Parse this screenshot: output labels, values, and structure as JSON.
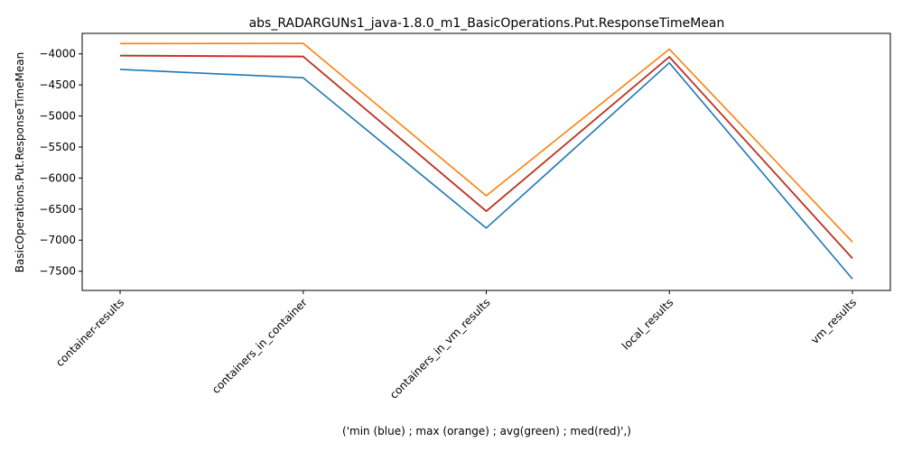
{
  "chart_data": {
    "type": "line",
    "title": "abs_RADARGUNs1_java-1.8.0_m1_BasicOperations.Put.ResponseTimeMean",
    "xlabel": "('min (blue) ; max (orange) ; avg(green) ; med(red)',)",
    "ylabel": "BasicOperations.Put.ResponseTimeMean",
    "categories": [
      "container-results",
      "containers_in_container",
      "containers_in_vm_results",
      "local_results",
      "vm_results"
    ],
    "ylim": [
      -7810,
      -3670
    ],
    "yticks": [
      -4000,
      -4500,
      -5000,
      -5500,
      -6000,
      -6500,
      -7000,
      -7500
    ],
    "ytick_labels": [
      "−4000",
      "−4500",
      "−5000",
      "−5500",
      "−6000",
      "−6500",
      "−7000",
      "−7500"
    ],
    "grid": false,
    "series": [
      {
        "color": "#1f77b4",
        "values": [
          -4250,
          -4385,
          -6805,
          -4145,
          -7625
        ]
      },
      {
        "color": "#ff7f0e",
        "values": [
          -3835,
          -3830,
          -6285,
          -3925,
          -7030
        ]
      },
      {
        "color": "#2ca02c",
        "values": [
          -4025,
          -4040,
          -6530,
          -4045,
          -7290
        ]
      },
      {
        "color": "#d62728",
        "values": [
          -4030,
          -4045,
          -6535,
          -4050,
          -7295
        ]
      }
    ]
  }
}
